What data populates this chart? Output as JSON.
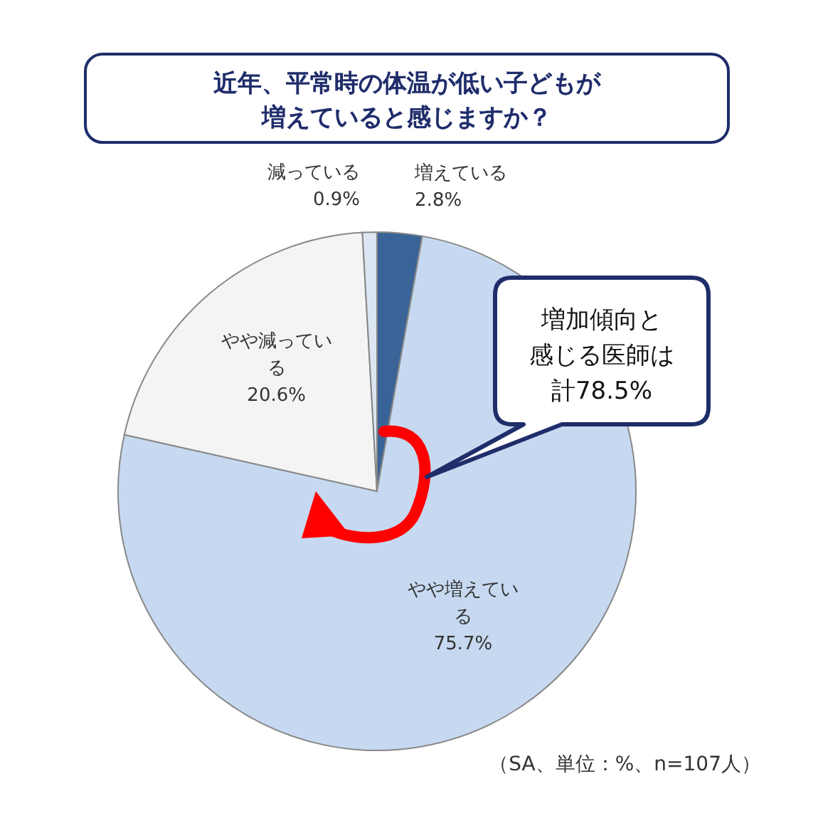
{
  "chart_data": {
    "type": "pie",
    "title": "近年、平常時の体温が低い子どもが増えていると感じますか？",
    "categories": [
      "増えている",
      "やや増えている",
      "やや減っている",
      "減っている"
    ],
    "values": [
      2.8,
      75.7,
      20.6,
      0.9
    ],
    "colors": [
      "#3a6497",
      "#c6d9f0",
      "#f4f4f4",
      "#dce6f2"
    ],
    "value_labels": [
      "2.8%",
      "75.7%",
      "20.6%",
      "0.9%"
    ],
    "annotations": [
      "増加傾向と感じる医師は計78.5%",
      "（SA、単位：%、n=107人）"
    ]
  }
}
